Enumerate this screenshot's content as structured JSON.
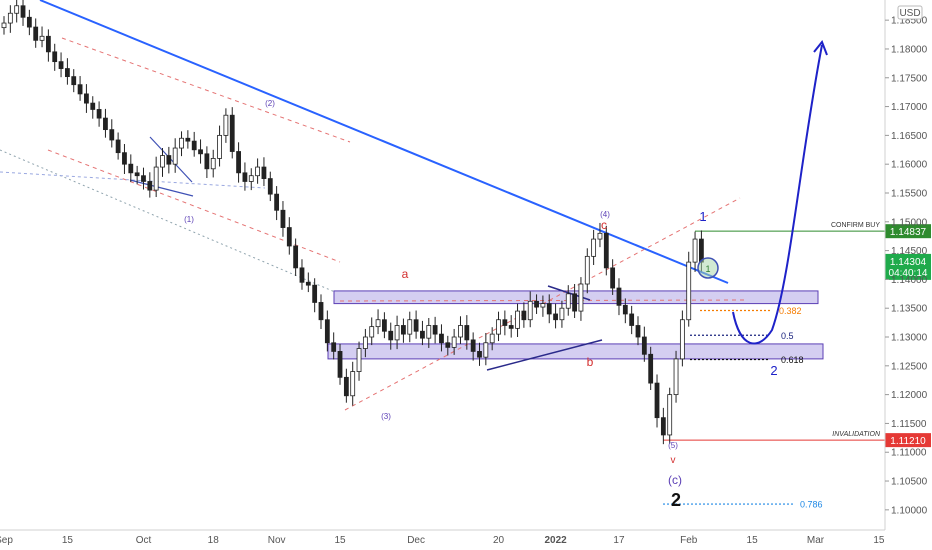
{
  "chart_data": {
    "type": "candlestick",
    "currency": "USD",
    "ylim": [
      1.0965,
      1.1885
    ],
    "y_ticks": [
      "1.18500",
      "1.18000",
      "1.17500",
      "1.17000",
      "1.16500",
      "1.16000",
      "1.15500",
      "1.15000",
      "1.14500",
      "1.14000",
      "1.13500",
      "1.13000",
      "1.12500",
      "1.12000",
      "1.11500",
      "1.11000",
      "1.10500",
      "1.10000"
    ],
    "x_ticks": [
      {
        "label": "Sep",
        "bar": 0
      },
      {
        "label": "15",
        "bar": 10
      },
      {
        "label": "Oct",
        "bar": 22
      },
      {
        "label": "18",
        "bar": 33
      },
      {
        "label": "Nov",
        "bar": 43
      },
      {
        "label": "15",
        "bar": 53
      },
      {
        "label": "Dec",
        "bar": 65
      },
      {
        "label": "20",
        "bar": 78
      },
      {
        "label": "2022",
        "bar": 87
      },
      {
        "label": "17",
        "bar": 97
      },
      {
        "label": "Feb",
        "bar": 108
      },
      {
        "label": "15",
        "bar": 118
      },
      {
        "label": "Mar",
        "bar": 128
      },
      {
        "label": "15",
        "bar": 138
      }
    ],
    "closes": [
      1.1845,
      1.1862,
      1.1875,
      1.1855,
      1.1838,
      1.1815,
      1.1822,
      1.1795,
      1.1778,
      1.1766,
      1.1752,
      1.1738,
      1.1722,
      1.1706,
      1.1695,
      1.168,
      1.166,
      1.1642,
      1.162,
      1.16,
      1.1585,
      1.158,
      1.157,
      1.1555,
      1.1595,
      1.1615,
      1.16,
      1.1628,
      1.1645,
      1.164,
      1.1625,
      1.1618,
      1.1592,
      1.161,
      1.165,
      1.1685,
      1.1622,
      1.1585,
      1.157,
      1.158,
      1.1595,
      1.1575,
      1.1548,
      1.152,
      1.149,
      1.1458,
      1.142,
      1.1395,
      1.139,
      1.136,
      1.133,
      1.129,
      1.1275,
      1.123,
      1.1198,
      1.124,
      1.128,
      1.13,
      1.1318,
      1.133,
      1.131,
      1.1295,
      1.132,
      1.1305,
      1.133,
      1.131,
      1.1298,
      1.132,
      1.1305,
      1.129,
      1.1282,
      1.13,
      1.132,
      1.1295,
      1.1275,
      1.1265,
      1.129,
      1.1305,
      1.133,
      1.132,
      1.1315,
      1.1345,
      1.133,
      1.1362,
      1.1352,
      1.1358,
      1.134,
      1.133,
      1.135,
      1.1375,
      1.1345,
      1.1392,
      1.144,
      1.147,
      1.148,
      1.142,
      1.1385,
      1.1355,
      1.134,
      1.132,
      1.13,
      1.127,
      1.122,
      1.116,
      1.113,
      1.12,
      1.1262,
      1.133,
      1.143,
      1.147,
      1.143
    ],
    "bar_count_scale": 140,
    "annotations": {
      "wave_labels": [
        "(1)",
        "(2)",
        "(3)",
        "(4)",
        "(5)",
        "a",
        "b",
        "c",
        "v",
        "(c)",
        "1",
        "2",
        "2",
        "1"
      ],
      "confirm_buy": {
        "text": "CONFIRM BUY",
        "price": "1.14837",
        "value": 1.14837
      },
      "invalidation": {
        "text": "INVALIDATION",
        "price": "1.11210",
        "value": 1.1121
      },
      "current_price": {
        "price": "1.14304",
        "countdown": "04:40:14",
        "value": 1.14304
      },
      "fib_levels": [
        {
          "label": "0.382",
          "value": 1.1346
        },
        {
          "label": "0.5",
          "value": 1.1303
        },
        {
          "label": "0.618",
          "value": 1.1261
        },
        {
          "label": "0.786",
          "value": 1.101
        }
      ],
      "support_zones": [
        [
          1.1358,
          1.138
        ],
        [
          1.1262,
          1.1288
        ]
      ]
    },
    "colors": {
      "candle": "#222222",
      "trendline": "#2962ff",
      "projection": "#1e22c8",
      "zone_fill": "#b7aee8",
      "zone_border": "#5b3fb5",
      "confirm": "#2e8b2e",
      "invalid": "#e53935",
      "wave_red": "#d32f2f",
      "wave_purple": "#5b3fb5",
      "fib_orange": "#f57c00",
      "fib_navy": "#1a237e",
      "fib_786": "#1e88e5"
    }
  }
}
